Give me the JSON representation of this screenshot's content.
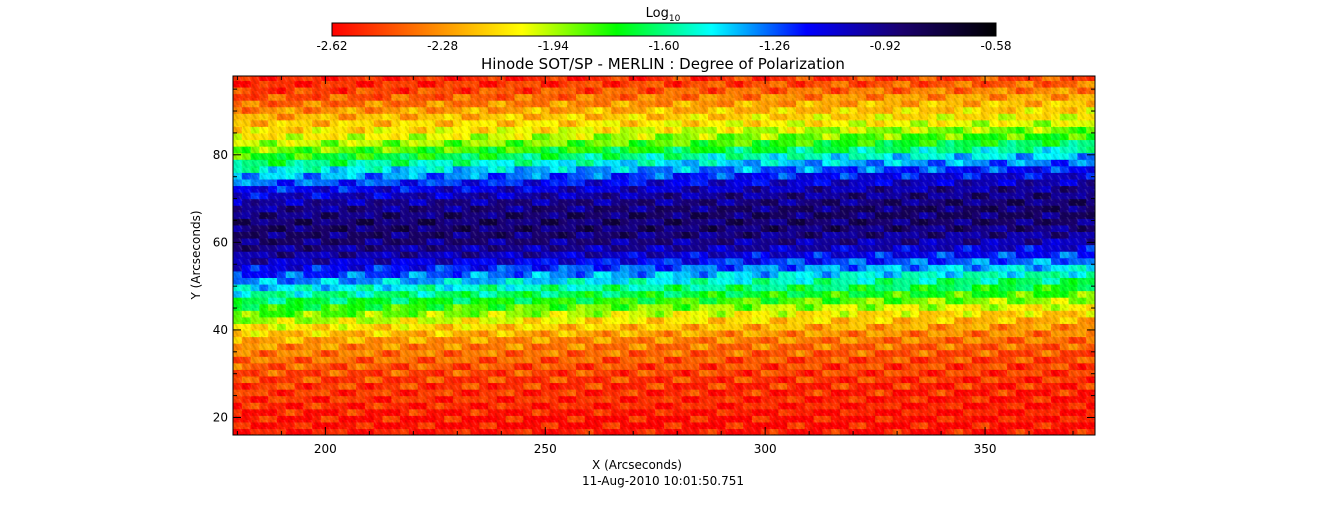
{
  "chart_data": {
    "type": "heatmap",
    "title": "Hinode SOT/SP - MERLIN : Degree of Polarization",
    "xlabel": "X (Arcseconds)",
    "ylabel": "Y (Arcseconds)",
    "timestamp": "11-Aug-2010 10:01:50.751",
    "xlim": [
      179,
      375
    ],
    "ylim": [
      16,
      98
    ],
    "xticks": [
      200,
      250,
      300,
      350
    ],
    "yticks": [
      20,
      40,
      60,
      80
    ],
    "colorbar": {
      "label": "Log",
      "label_subscript": "10",
      "min": -2.62,
      "max": -0.58,
      "ticks": [
        "-2.62",
        "-2.28",
        "-1.94",
        "-1.60",
        "-1.26",
        "-0.92",
        "-0.58"
      ],
      "colors": [
        "#ff0000",
        "#ff8000",
        "#ffff00",
        "#00ff00",
        "#00ffff",
        "#0000ff",
        "#1a006e",
        "#000000"
      ]
    },
    "bands": [
      {
        "y": 18,
        "value": -2.58
      },
      {
        "y": 24,
        "value": -2.52
      },
      {
        "y": 30,
        "value": -2.45
      },
      {
        "y": 36,
        "value": -2.3
      },
      {
        "y": 40,
        "value": -2.1
      },
      {
        "y": 44,
        "value": -1.8
      },
      {
        "y": 48,
        "value": -1.55
      },
      {
        "y": 52,
        "value": -1.25
      },
      {
        "y": 56,
        "value": -1.0
      },
      {
        "y": 60,
        "value": -0.88
      },
      {
        "y": 64,
        "value": -0.86
      },
      {
        "y": 68,
        "value": -0.95
      },
      {
        "y": 72,
        "value": -1.15
      },
      {
        "y": 76,
        "value": -1.45
      },
      {
        "y": 80,
        "value": -1.8
      },
      {
        "y": 84,
        "value": -2.05
      },
      {
        "y": 88,
        "value": -2.2
      },
      {
        "y": 92,
        "value": -2.4
      },
      {
        "y": 96,
        "value": -2.55
      }
    ],
    "band_drift_per_arcsec": 0.024
  }
}
